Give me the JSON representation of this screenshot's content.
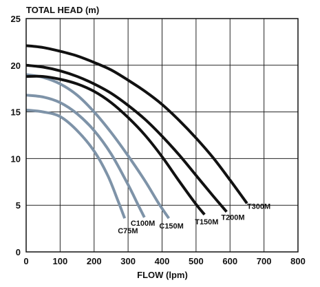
{
  "chart_data": {
    "type": "line",
    "title": "",
    "xlabel": "FLOW (lpm)",
    "ylabel": "TOTAL HEAD (m)",
    "xlim": [
      0,
      800
    ],
    "ylim": [
      0,
      25
    ],
    "x_ticks": [
      0,
      100,
      200,
      300,
      400,
      500,
      600,
      700,
      800
    ],
    "y_ticks": [
      0,
      5,
      10,
      15,
      20,
      25
    ],
    "grid": true,
    "legend": "inline labels at curve ends",
    "series": [
      {
        "name": "C75M",
        "color": "#7e93a8",
        "points": [
          [
            0,
            15.2
          ],
          [
            50,
            15.0
          ],
          [
            100,
            14.5
          ],
          [
            150,
            13.0
          ],
          [
            200,
            10.8
          ],
          [
            240,
            8.2
          ],
          [
            270,
            5.5
          ],
          [
            290,
            3.6
          ]
        ]
      },
      {
        "name": "C100M",
        "color": "#7e93a8",
        "points": [
          [
            0,
            16.8
          ],
          [
            50,
            16.6
          ],
          [
            100,
            16.0
          ],
          [
            150,
            14.8
          ],
          [
            200,
            13.0
          ],
          [
            250,
            10.5
          ],
          [
            300,
            7.2
          ],
          [
            330,
            5.0
          ],
          [
            348,
            3.7
          ]
        ]
      },
      {
        "name": "C150M",
        "color": "#7e93a8",
        "points": [
          [
            0,
            19.0
          ],
          [
            50,
            18.7
          ],
          [
            100,
            18.0
          ],
          [
            150,
            16.8
          ],
          [
            200,
            15.0
          ],
          [
            250,
            12.8
          ],
          [
            300,
            10.3
          ],
          [
            350,
            7.6
          ],
          [
            390,
            5.2
          ],
          [
            420,
            3.6
          ]
        ]
      },
      {
        "name": "T150M",
        "color": "#111111",
        "points": [
          [
            0,
            18.8
          ],
          [
            50,
            18.8
          ],
          [
            100,
            18.5
          ],
          [
            150,
            18.0
          ],
          [
            200,
            17.2
          ],
          [
            250,
            16.0
          ],
          [
            300,
            14.4
          ],
          [
            350,
            12.5
          ],
          [
            400,
            10.2
          ],
          [
            450,
            7.6
          ],
          [
            500,
            5.1
          ],
          [
            525,
            4.0
          ]
        ]
      },
      {
        "name": "T200M",
        "color": "#111111",
        "points": [
          [
            0,
            20.0
          ],
          [
            50,
            19.8
          ],
          [
            100,
            19.4
          ],
          [
            150,
            18.8
          ],
          [
            200,
            18.0
          ],
          [
            250,
            17.0
          ],
          [
            300,
            15.7
          ],
          [
            350,
            14.2
          ],
          [
            400,
            12.4
          ],
          [
            450,
            10.4
          ],
          [
            500,
            8.2
          ],
          [
            550,
            6.0
          ],
          [
            590,
            4.3
          ]
        ]
      },
      {
        "name": "T300M",
        "color": "#111111",
        "points": [
          [
            0,
            22.1
          ],
          [
            50,
            21.9
          ],
          [
            100,
            21.5
          ],
          [
            150,
            21.0
          ],
          [
            200,
            20.3
          ],
          [
            250,
            19.5
          ],
          [
            300,
            18.4
          ],
          [
            350,
            17.2
          ],
          [
            400,
            15.8
          ],
          [
            450,
            14.1
          ],
          [
            500,
            12.2
          ],
          [
            550,
            10.1
          ],
          [
            600,
            7.7
          ],
          [
            650,
            5.2
          ]
        ]
      }
    ]
  }
}
